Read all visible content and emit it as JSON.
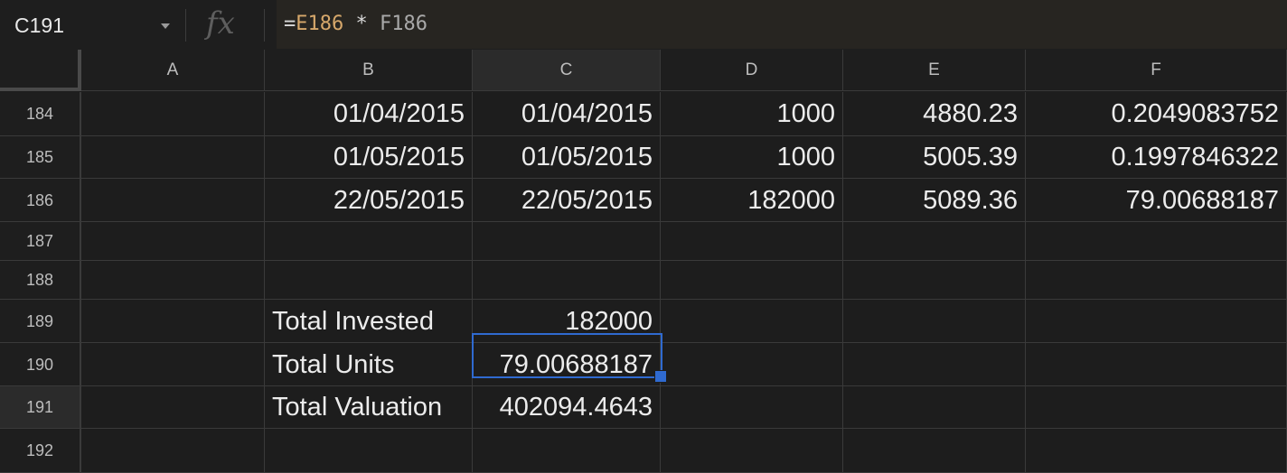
{
  "formula_bar": {
    "name_box": "C191",
    "fx_icon": "fx",
    "formula": {
      "eq": "=",
      "ref1": "E186",
      "op": " * ",
      "ref2": "F186"
    }
  },
  "columns": [
    "A",
    "B",
    "C",
    "D",
    "E",
    "F"
  ],
  "rows": [
    {
      "num": "184",
      "cells": {
        "B": "01/04/2015",
        "C": "01/04/2015",
        "D": "1000",
        "E": "4880.23",
        "F": "0.2049083752"
      }
    },
    {
      "num": "185",
      "cells": {
        "B": "01/05/2015",
        "C": "01/05/2015",
        "D": "1000",
        "E": "5005.39",
        "F": "0.1997846322"
      }
    },
    {
      "num": "186",
      "cells": {
        "B": "22/05/2015",
        "C": "22/05/2015",
        "D": "182000",
        "E": "5089.36",
        "F": "79.00688187"
      }
    },
    {
      "num": "187",
      "cells": {}
    },
    {
      "num": "188",
      "cells": {}
    },
    {
      "num": "189",
      "cells": {
        "B": "Total Invested",
        "C": "182000"
      }
    },
    {
      "num": "190",
      "cells": {
        "B": "Total Units",
        "C": "79.00688187"
      }
    },
    {
      "num": "191",
      "cells": {
        "B": "Total Valuation",
        "C": "402094.4643"
      }
    },
    {
      "num": "192",
      "cells": {}
    }
  ],
  "selection": {
    "cell": "C191",
    "color": "#2f6ad0"
  }
}
